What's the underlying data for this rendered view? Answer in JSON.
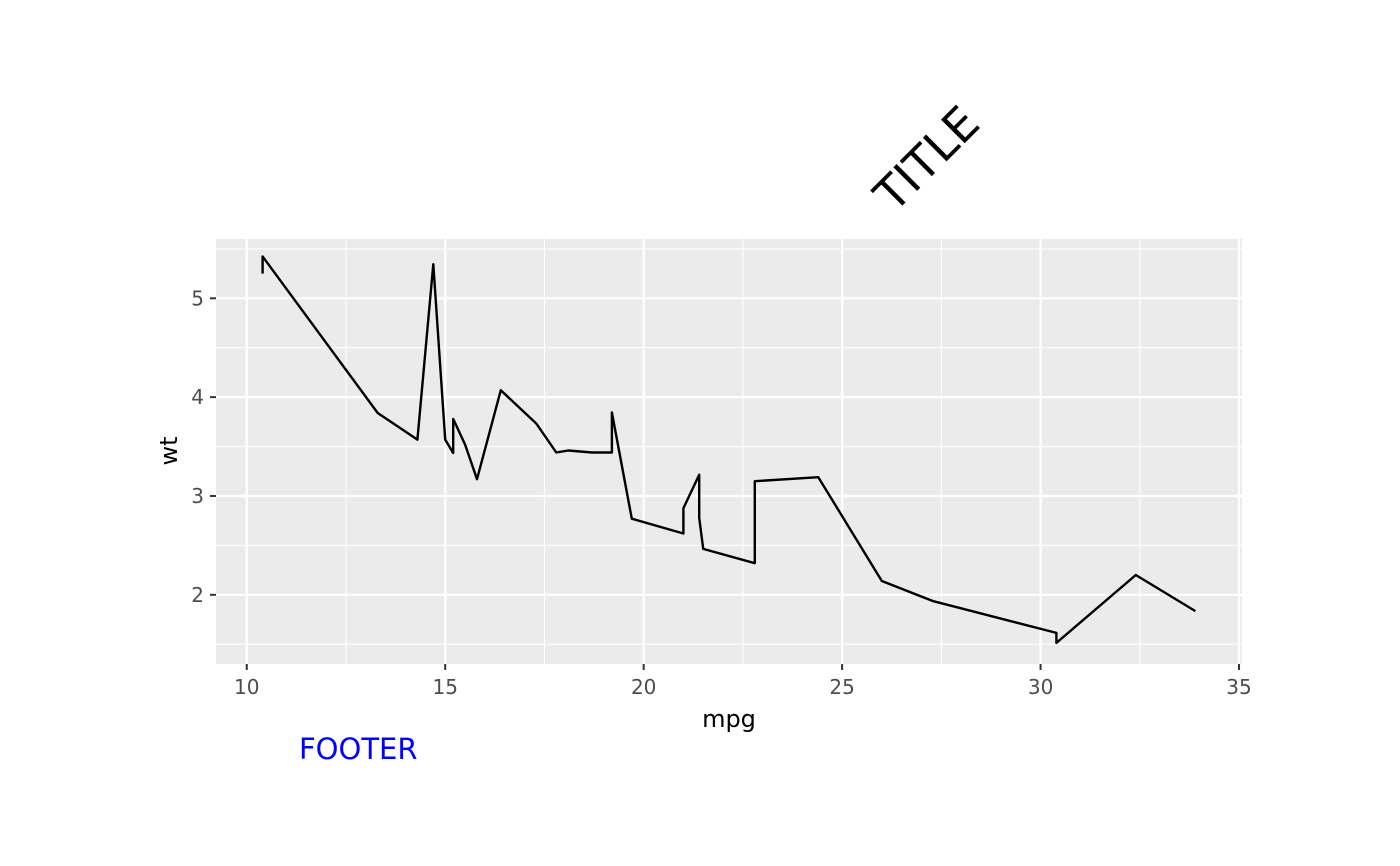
{
  "chart_data": {
    "type": "line",
    "title": "TITLE",
    "footer": "FOOTER",
    "footer_color": "#0000ff",
    "xlabel": "mpg",
    "ylabel": "wt",
    "xlim": [
      9.225,
      35.075
    ],
    "ylim": [
      1.3,
      5.6
    ],
    "x_ticks": [
      10,
      15,
      20,
      25,
      30,
      35
    ],
    "x_tick_labels": [
      "10",
      "15",
      "20",
      "25",
      "30",
      "35"
    ],
    "y_ticks": [
      2,
      3,
      4,
      5
    ],
    "y_tick_labels": [
      "2",
      "3",
      "4",
      "5"
    ],
    "grid": true,
    "panel_background": "#ebebeb",
    "grid_color": "#ffffff",
    "line_color": "#000000",
    "series": [
      {
        "x": [
          10.4,
          10.4,
          13.3,
          14.3,
          14.7,
          15.0,
          15.2,
          15.2,
          15.5,
          15.8,
          16.4,
          17.3,
          17.8,
          18.1,
          18.7,
          19.2,
          19.2,
          19.7,
          21.0,
          21.0,
          21.4,
          21.4,
          21.5,
          22.8,
          22.8,
          24.4,
          26.0,
          27.3,
          30.4,
          30.4,
          32.4,
          33.9
        ],
        "y": [
          5.25,
          5.424,
          3.84,
          3.57,
          5.345,
          3.57,
          3.435,
          3.78,
          3.52,
          3.17,
          4.07,
          3.73,
          3.44,
          3.46,
          3.44,
          3.44,
          3.845,
          2.77,
          2.62,
          2.875,
          3.215,
          2.78,
          2.465,
          2.32,
          3.15,
          3.19,
          2.14,
          1.935,
          1.615,
          1.513,
          2.2,
          1.835
        ]
      }
    ]
  }
}
